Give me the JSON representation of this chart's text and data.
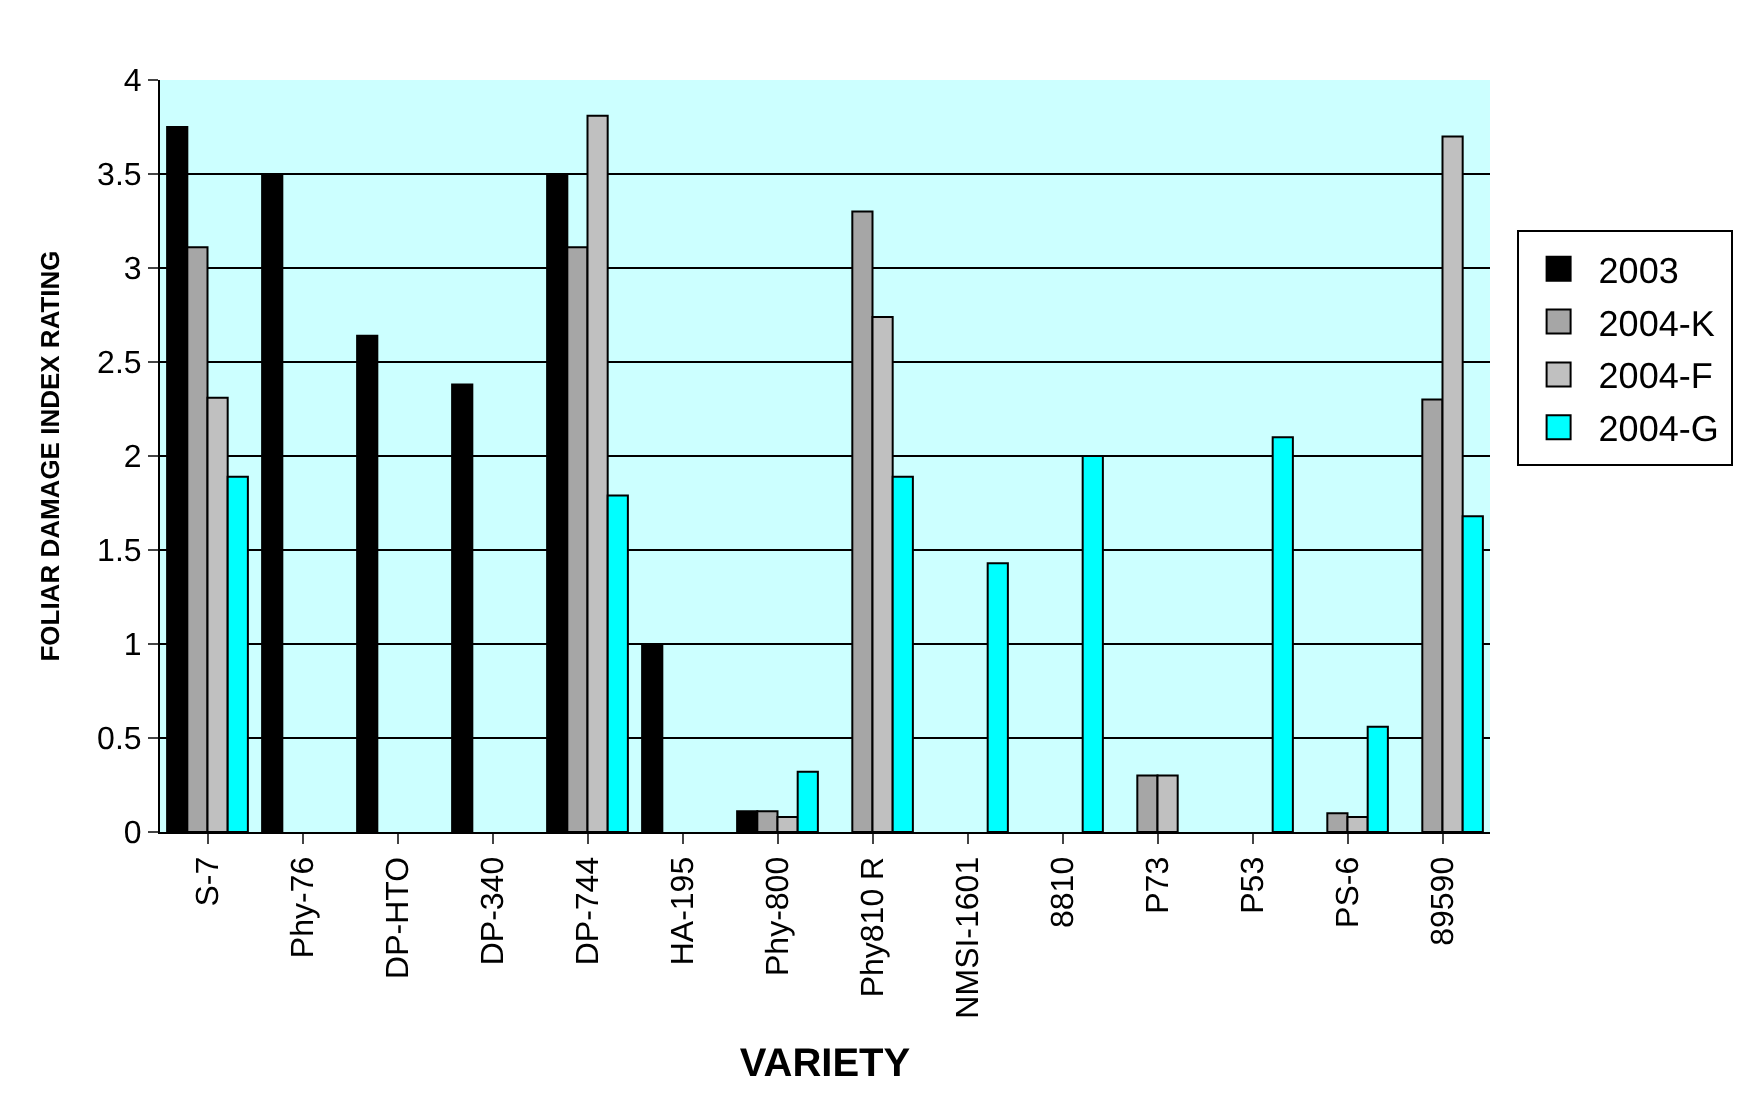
{
  "chart_data": {
    "type": "bar",
    "xlabel": "VARIETY",
    "ylabel": "FOLIAR DAMAGE INDEX RATING",
    "categories": [
      "S-7",
      "Phy-76",
      "DP-HTO",
      "DP-340",
      "DP-744",
      "HA-195",
      "Phy-800",
      "Phy810 R",
      "NMSI-1601",
      "8810",
      "P73",
      "P53",
      "PS-6",
      "89590"
    ],
    "series": [
      {
        "name": "2003",
        "color": "#000000",
        "values": [
          3.75,
          3.5,
          2.64,
          2.38,
          3.5,
          1.0,
          0.11,
          null,
          null,
          null,
          null,
          null,
          null,
          null
        ]
      },
      {
        "name": "2004-K",
        "color": "#a6a6a6",
        "values": [
          3.11,
          null,
          null,
          null,
          3.11,
          null,
          0.11,
          3.3,
          null,
          null,
          0.3,
          null,
          0.1,
          2.3
        ]
      },
      {
        "name": "2004-F",
        "color": "#c0c0c0",
        "values": [
          2.31,
          null,
          null,
          null,
          3.81,
          null,
          0.08,
          2.74,
          null,
          null,
          0.3,
          null,
          0.08,
          3.7
        ]
      },
      {
        "name": "2004-G",
        "color": "#00ffff",
        "values": [
          1.89,
          null,
          null,
          null,
          1.79,
          null,
          0.32,
          1.89,
          1.43,
          2.0,
          null,
          2.1,
          0.56,
          1.68
        ]
      }
    ],
    "ylim": [
      0,
      4
    ],
    "yticks": [
      0,
      0.5,
      1,
      1.5,
      2,
      2.5,
      3,
      3.5,
      4
    ],
    "grid": "y",
    "legend": "right"
  }
}
